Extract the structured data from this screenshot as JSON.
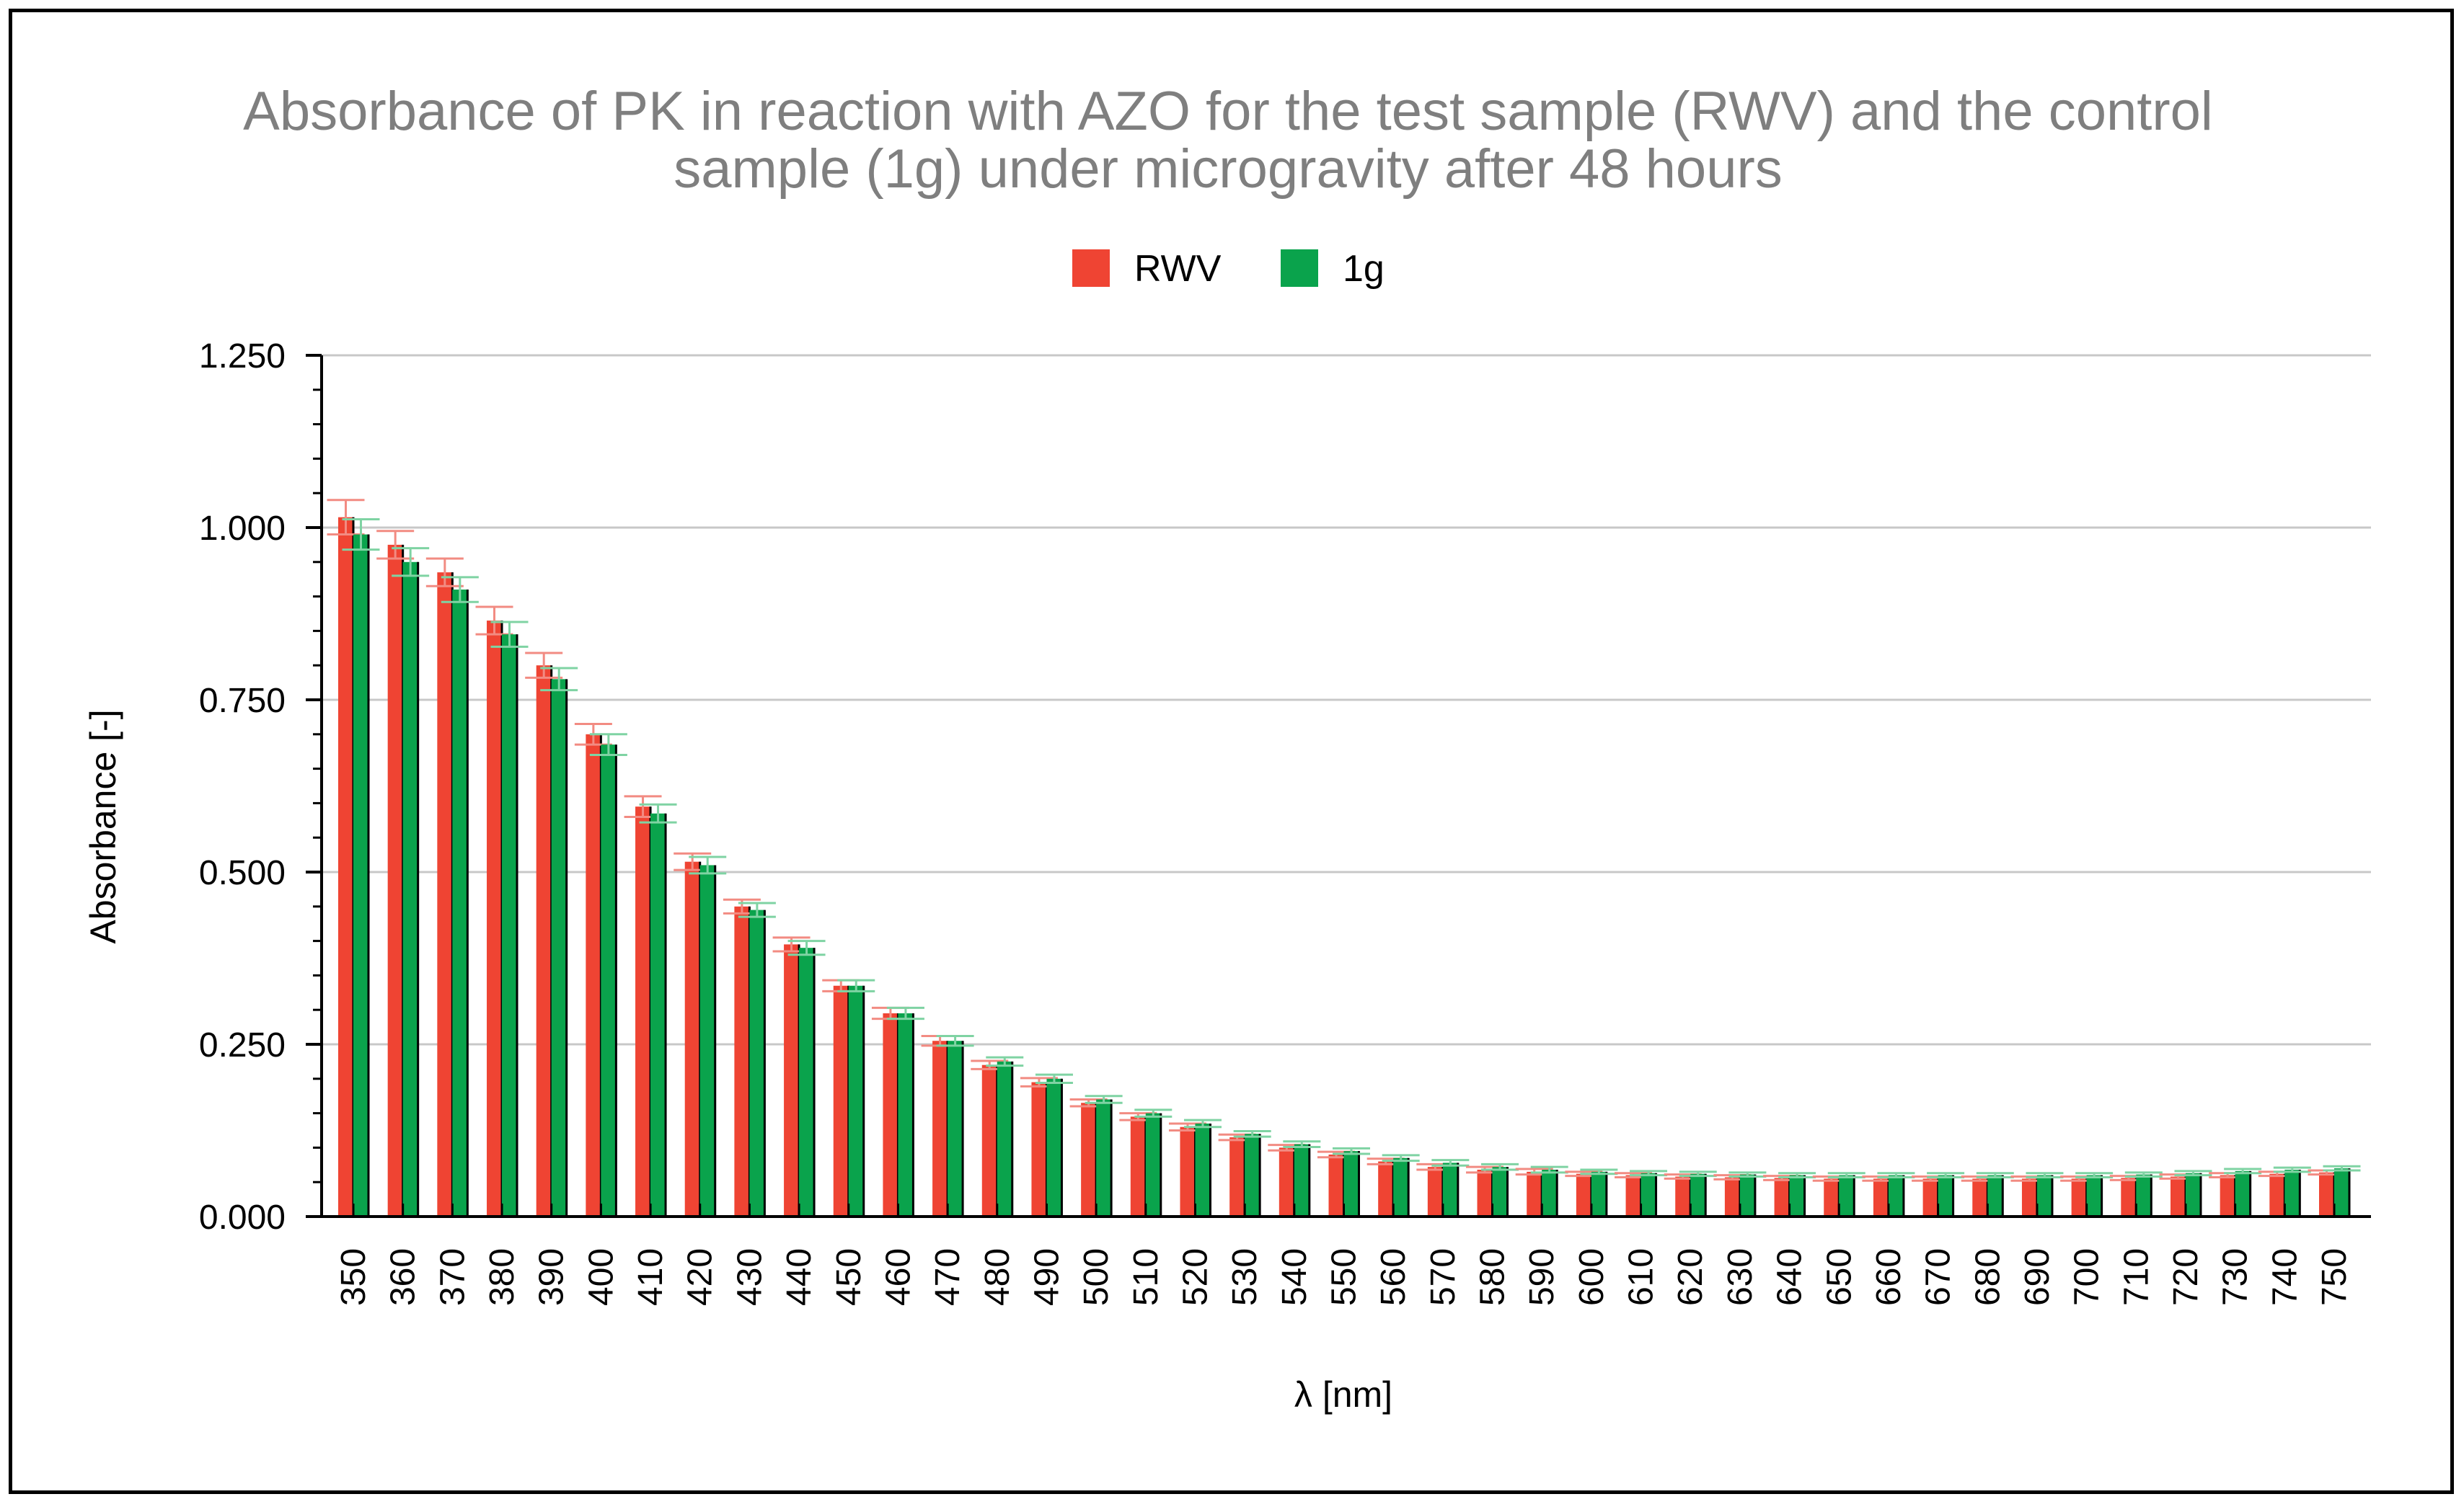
{
  "colors": {
    "rwv": "#ef4433",
    "g1": "#0aa34c",
    "rwv_error": "#f28b82",
    "g1_error": "#7fd3a3",
    "grid": "#c8c8c8",
    "title": "#7f7f7f"
  },
  "chart_data": {
    "type": "bar",
    "title": "Absorbance of PK in reaction with AZO for the test sample (RWV) and the control sample (1g) under microgravity after 48 hours",
    "title_lines": [
      "Absorbance of PK in reaction with AZO for the test sample (RWV) and the control",
      "sample (1g) under microgravity after 48 hours"
    ],
    "xlabel": "λ [nm]",
    "ylabel": "Absorbance [-]",
    "ylim": [
      0,
      1.25
    ],
    "yticks": [
      "0.000",
      "0.250",
      "0.500",
      "0.750",
      "1.000",
      "1.250"
    ],
    "grid": true,
    "legend_position": "top-center",
    "categories": [
      "350",
      "360",
      "370",
      "380",
      "390",
      "400",
      "410",
      "420",
      "430",
      "440",
      "450",
      "460",
      "470",
      "480",
      "490",
      "500",
      "510",
      "520",
      "530",
      "540",
      "550",
      "560",
      "570",
      "580",
      "590",
      "600",
      "610",
      "620",
      "630",
      "640",
      "650",
      "660",
      "670",
      "680",
      "690",
      "700",
      "710",
      "720",
      "730",
      "740",
      "750"
    ],
    "series": [
      {
        "name": "RWV",
        "values": [
          1.015,
          0.975,
          0.935,
          0.865,
          0.8,
          0.7,
          0.595,
          0.515,
          0.45,
          0.395,
          0.335,
          0.295,
          0.255,
          0.22,
          0.195,
          0.165,
          0.145,
          0.13,
          0.115,
          0.1,
          0.09,
          0.08,
          0.072,
          0.068,
          0.065,
          0.062,
          0.06,
          0.058,
          0.057,
          0.056,
          0.055,
          0.055,
          0.055,
          0.055,
          0.055,
          0.055,
          0.056,
          0.058,
          0.06,
          0.062,
          0.064
        ],
        "errors": [
          0.025,
          0.02,
          0.02,
          0.02,
          0.018,
          0.015,
          0.015,
          0.012,
          0.01,
          0.01,
          0.008,
          0.008,
          0.007,
          0.006,
          0.006,
          0.005,
          0.005,
          0.005,
          0.004,
          0.004,
          0.004,
          0.004,
          0.004,
          0.004,
          0.004,
          0.003,
          0.003,
          0.003,
          0.003,
          0.003,
          0.003,
          0.003,
          0.003,
          0.003,
          0.003,
          0.003,
          0.003,
          0.003,
          0.003,
          0.003,
          0.003
        ]
      },
      {
        "name": "1g",
        "values": [
          0.99,
          0.95,
          0.91,
          0.845,
          0.78,
          0.685,
          0.585,
          0.51,
          0.445,
          0.39,
          0.335,
          0.295,
          0.255,
          0.225,
          0.2,
          0.17,
          0.15,
          0.135,
          0.12,
          0.105,
          0.095,
          0.085,
          0.078,
          0.072,
          0.068,
          0.065,
          0.063,
          0.062,
          0.061,
          0.06,
          0.06,
          0.06,
          0.06,
          0.06,
          0.06,
          0.06,
          0.061,
          0.063,
          0.066,
          0.068,
          0.07
        ],
        "errors": [
          0.022,
          0.02,
          0.018,
          0.018,
          0.016,
          0.015,
          0.013,
          0.012,
          0.01,
          0.01,
          0.008,
          0.008,
          0.007,
          0.006,
          0.006,
          0.005,
          0.005,
          0.005,
          0.004,
          0.004,
          0.004,
          0.004,
          0.004,
          0.004,
          0.004,
          0.003,
          0.003,
          0.003,
          0.003,
          0.003,
          0.003,
          0.003,
          0.003,
          0.003,
          0.003,
          0.003,
          0.003,
          0.003,
          0.003,
          0.003,
          0.003
        ]
      }
    ]
  }
}
